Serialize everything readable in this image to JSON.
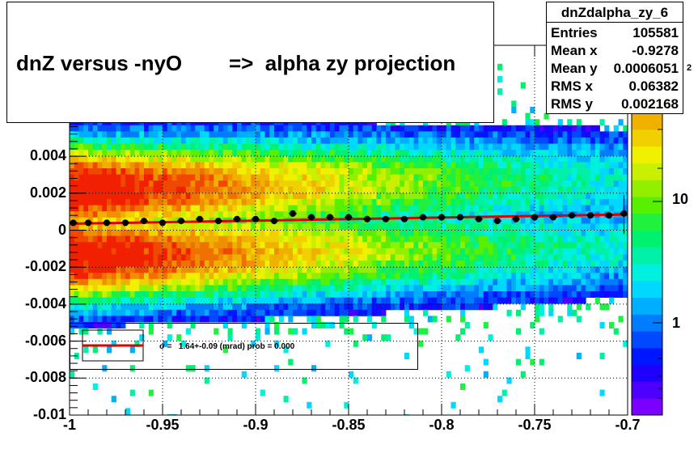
{
  "title": "dnZ versus -nyO        =>  alpha zy projection",
  "stats": {
    "name": "dnZdalpha_zy_6",
    "rows": [
      {
        "key": "Entries",
        "value": "105581"
      },
      {
        "key": "Mean x",
        "value": "-0.9278"
      },
      {
        "key": "Mean y",
        "value": "0.0006051"
      },
      {
        "key": "RMS x",
        "value": "0.06382"
      },
      {
        "key": "RMS y",
        "value": "0.002168"
      }
    ]
  },
  "legend": {
    "text": "σ =   1.64+-0.09 (mrad) prob = 0.000"
  },
  "palette_labels": [
    "10",
    "1"
  ],
  "palette_partial_label": "2",
  "colors": {
    "fit_line": "#e00000",
    "points": "#000000"
  },
  "chart_data": {
    "type": "heatmap",
    "title": "dnZ versus -nyO        =>  alpha zy projection",
    "xlabel": "",
    "ylabel": "",
    "xlim": [
      -1.0,
      -0.7
    ],
    "ylim": [
      -0.01,
      0.01
    ],
    "x_ticks": [
      "-1",
      "-0.95",
      "-0.9",
      "-0.85",
      "-0.8",
      "-0.75",
      "-0.7"
    ],
    "y_ticks": [
      "-0.01",
      "-0.008",
      "-0.006",
      "-0.004",
      "-0.002",
      "0",
      "0.002",
      "0.004"
    ],
    "z_scale": "log",
    "grid": true,
    "profile_points": {
      "x": [
        -0.998,
        -0.99,
        -0.98,
        -0.97,
        -0.96,
        -0.95,
        -0.94,
        -0.93,
        -0.92,
        -0.91,
        -0.9,
        -0.89,
        -0.88,
        -0.87,
        -0.86,
        -0.85,
        -0.84,
        -0.83,
        -0.82,
        -0.81,
        -0.8,
        -0.79,
        -0.78,
        -0.77,
        -0.76,
        -0.75,
        -0.74,
        -0.73,
        -0.72,
        -0.71,
        -0.702
      ],
      "y": [
        0.0004,
        0.0004,
        0.0004,
        0.0004,
        0.0005,
        0.0004,
        0.0005,
        0.0006,
        0.0005,
        0.0006,
        0.0006,
        0.0005,
        0.0009,
        0.0007,
        0.0007,
        0.0007,
        0.0006,
        0.0006,
        0.0006,
        0.0007,
        0.0007,
        0.0007,
        0.0006,
        0.0005,
        0.0006,
        0.0007,
        0.0007,
        0.0008,
        0.0008,
        0.0008,
        0.0009
      ]
    },
    "fit_line": {
      "x": [
        -1.0,
        -0.7
      ],
      "y": [
        0.00035,
        0.00085
      ]
    }
  }
}
